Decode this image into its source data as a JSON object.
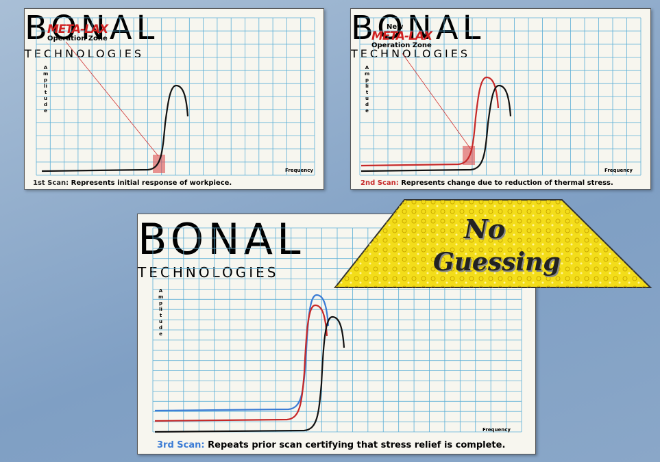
{
  "panels": [
    {
      "zone_brand": "META-LAX",
      "zone_label": "Operation Zone",
      "axis_y": "Amplitude",
      "axis_x": "Frequency",
      "caption_label": "1st Scan:",
      "caption_text": "Represents initial response of workpiece."
    },
    {
      "zone_new": "New",
      "zone_brand": "META-LAX",
      "zone_label": "Operation Zone",
      "axis_y": "Amplitude",
      "axis_x": "Frequency",
      "caption_label": "2nd Scan:",
      "caption_text": "Represents change due to reduction of thermal stress."
    },
    {
      "axis_y": "Amplitude",
      "axis_x": "Frequency",
      "caption_label": "3rd Scan:",
      "caption_text": "Repeats prior scan certifying that stress relief is complete."
    }
  ],
  "watermark": {
    "line1": "BONAL",
    "line2": "TECHNOLOGIES"
  },
  "banner": {
    "line1": "No",
    "line2": "Guessing"
  }
}
